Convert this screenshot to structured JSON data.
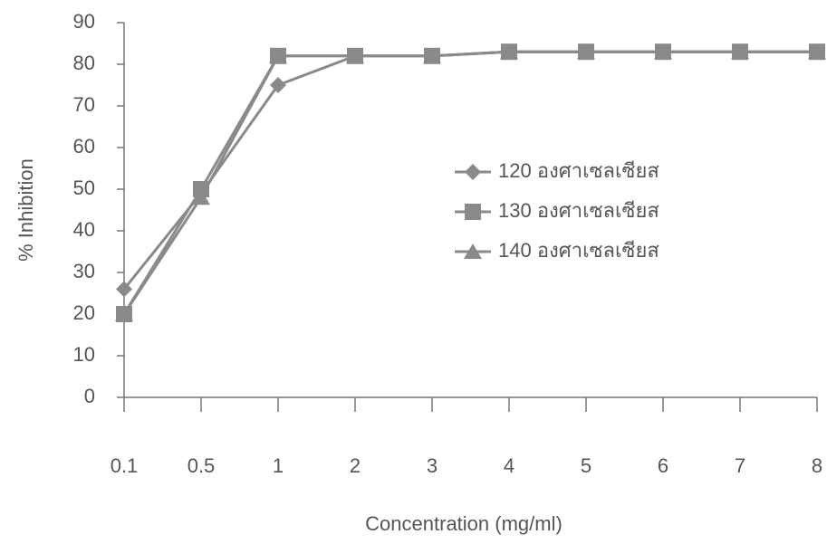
{
  "chart_data": {
    "type": "line",
    "x_label": "Concentration (mg/ml)",
    "y_label": "% Inhibition",
    "categories": [
      "0.1",
      "0.5",
      "1",
      "2",
      "3",
      "4",
      "5",
      "6",
      "7",
      "8"
    ],
    "series": [
      {
        "name": "120 องศาเซลเซียส",
        "color": "#8a8a8a",
        "marker": "diamond",
        "values": [
          26,
          49,
          75,
          82,
          82,
          83,
          83,
          83,
          83,
          83
        ]
      },
      {
        "name": "130 องศาเซลเซียส",
        "color": "#8a8a8a",
        "marker": "square",
        "values": [
          20,
          50,
          82,
          82,
          82,
          83,
          83,
          83,
          83,
          83
        ]
      },
      {
        "name": "140 องศาเซลเซียส",
        "color": "#8a8a8a",
        "marker": "triangle",
        "values": [
          20,
          48,
          82,
          82,
          82,
          83,
          83,
          83,
          83,
          83
        ]
      }
    ],
    "ylim": [
      0,
      90
    ],
    "yticks": [
      0,
      10,
      20,
      30,
      40,
      50,
      60,
      70,
      80,
      90
    ],
    "grid": false,
    "legend": "right"
  }
}
